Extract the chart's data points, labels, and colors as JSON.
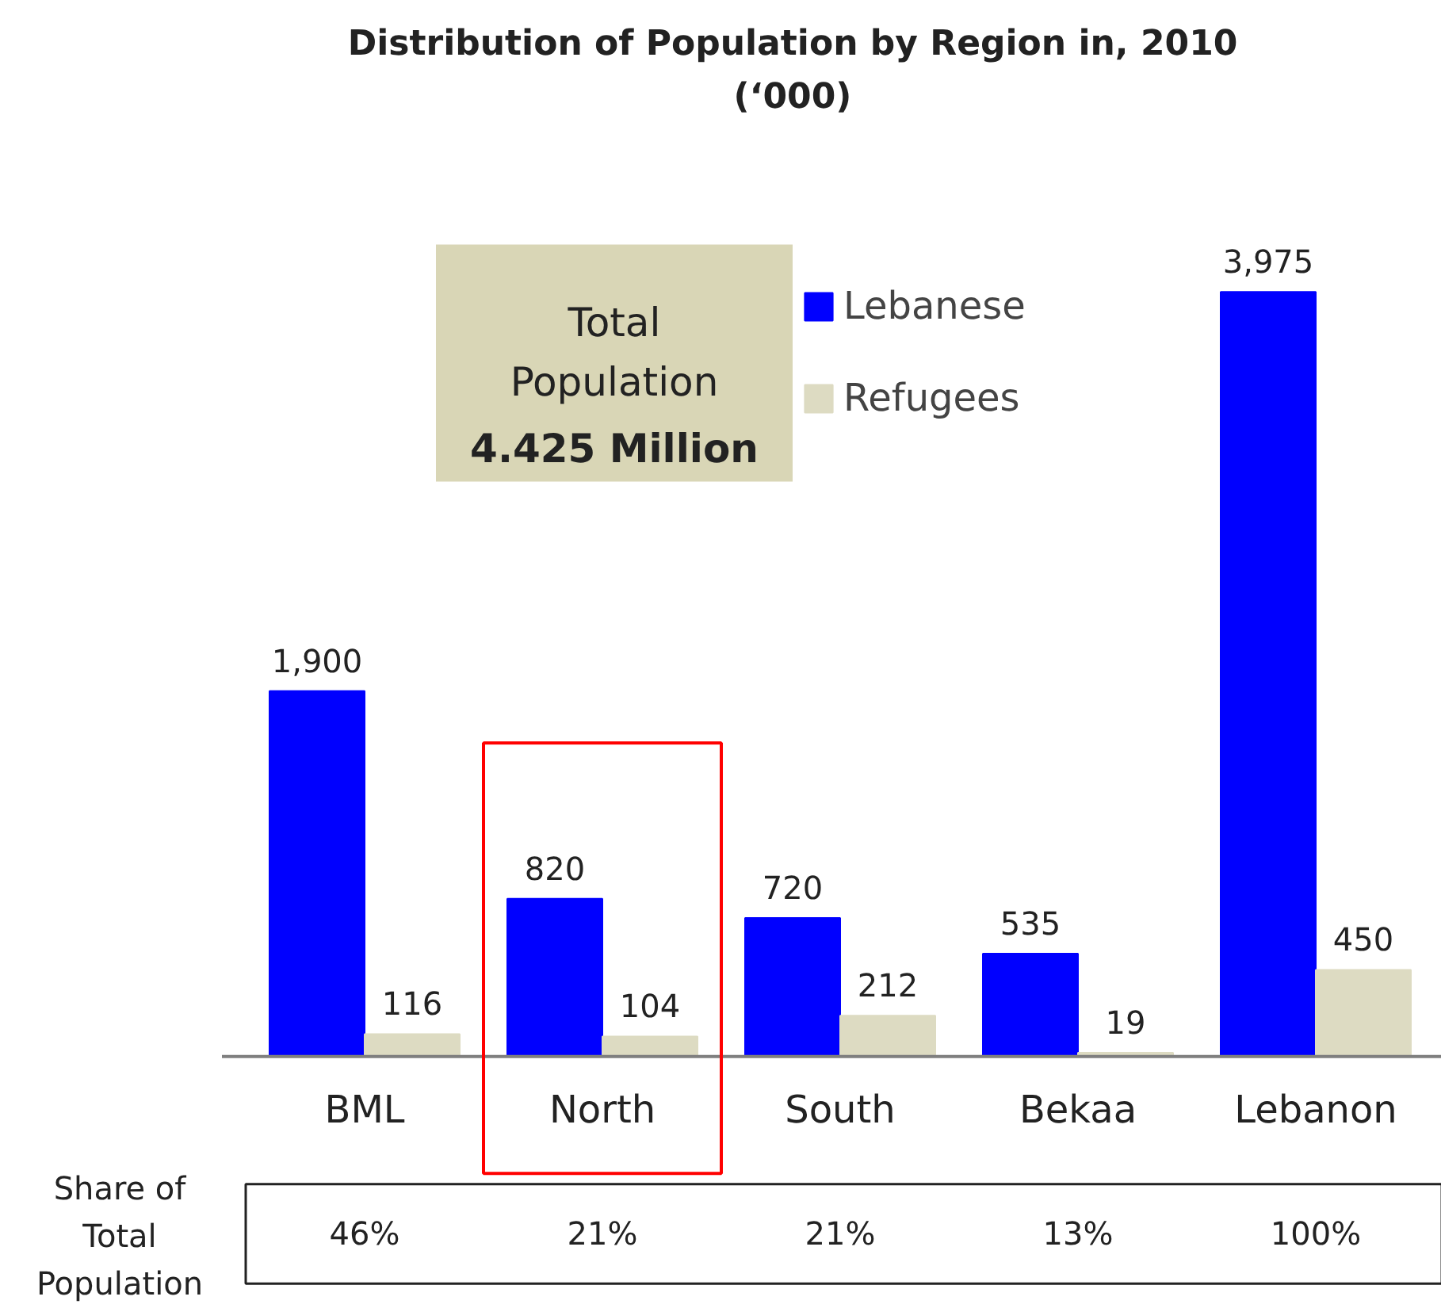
{
  "chart_data": {
    "type": "bar",
    "title": "Distribution of Population by Region in, 2010\n(‘000)",
    "categories": [
      "BML",
      "North",
      "South",
      "Bekaa",
      "Lebanon"
    ],
    "series": [
      {
        "name": "Lebanese",
        "color": "#0000ff",
        "values": [
          1900,
          820,
          720,
          535,
          3975
        ],
        "value_labels": [
          "1,900",
          "820",
          "720",
          "535",
          "3,975"
        ]
      },
      {
        "name": "Refugees",
        "color": "#dddbc2",
        "values": [
          116,
          104,
          212,
          19,
          450
        ],
        "value_labels": [
          "116",
          "104",
          "212",
          "19",
          "450"
        ]
      }
    ],
    "legend": "top right",
    "grid": false,
    "annotations": [
      "Total\nPopulation",
      "4.425 Million",
      "Share of\nTotal\nPopulation",
      "46%",
      "21%",
      "21%",
      "13%",
      "100%"
    ]
  }
}
